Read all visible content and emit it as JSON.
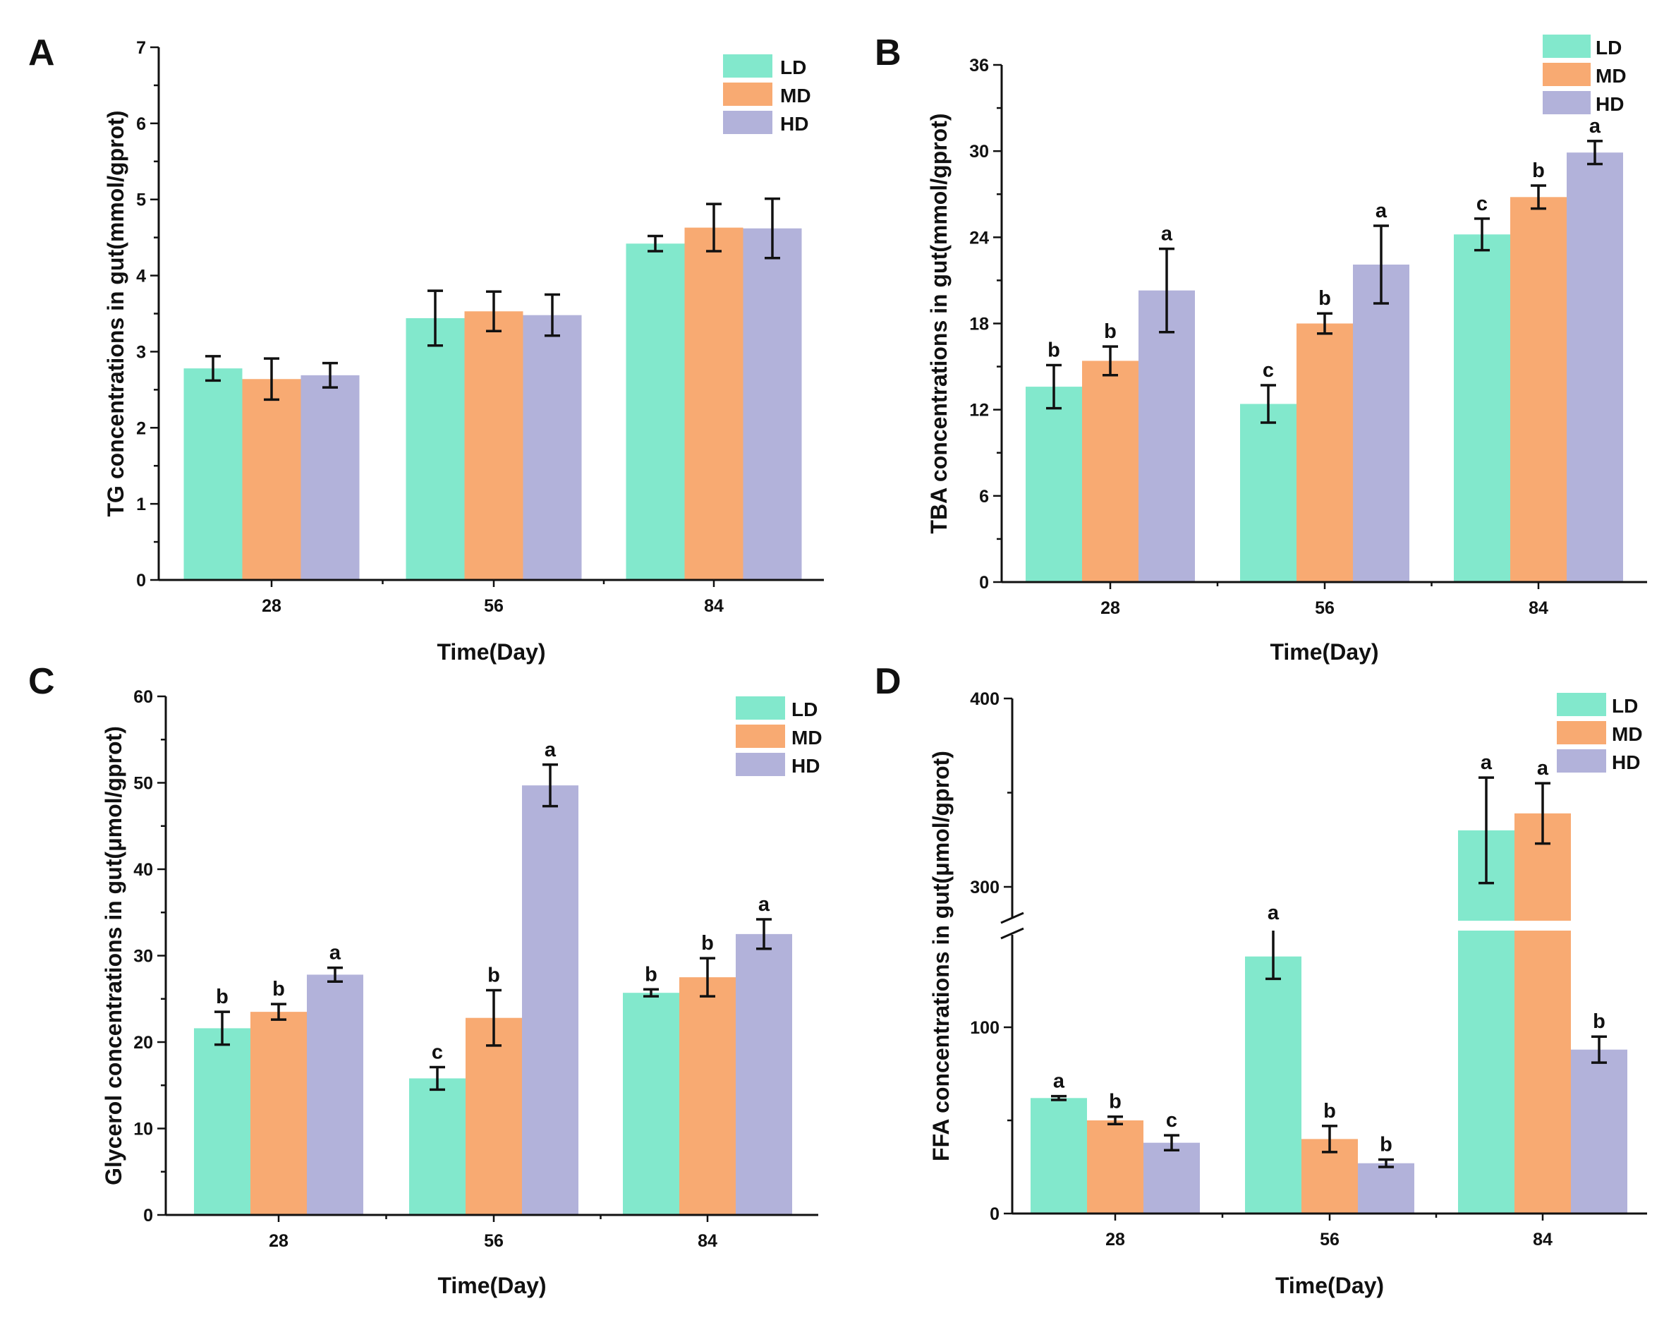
{
  "figure": {
    "colors": {
      "LD": "#82e8cc",
      "MD": "#f8aa72",
      "HD": "#b2b2da"
    }
  },
  "chart_data": [
    {
      "panel": "A",
      "type": "bar",
      "categories": [
        "28",
        "56",
        "84"
      ],
      "xlabel": "Time(Day)",
      "ylabel": "TG concentrations in gut(mmol/gprot)",
      "ylim": [
        0,
        7
      ],
      "yticks": [
        0,
        1,
        2,
        3,
        4,
        5,
        6,
        7
      ],
      "legend": [
        "LD",
        "MD",
        "HD"
      ],
      "legend_position": "top-right",
      "series": [
        {
          "name": "LD",
          "values": [
            2.78,
            3.44,
            4.42
          ],
          "errors": [
            0.16,
            0.36,
            0.1
          ],
          "labels": [
            "",
            "",
            ""
          ]
        },
        {
          "name": "MD",
          "values": [
            2.64,
            3.53,
            4.63
          ],
          "errors": [
            0.27,
            0.26,
            0.31
          ],
          "labels": [
            "",
            "",
            ""
          ]
        },
        {
          "name": "HD",
          "values": [
            2.69,
            3.48,
            4.62
          ],
          "errors": [
            0.16,
            0.27,
            0.39
          ],
          "labels": [
            "",
            "",
            ""
          ]
        }
      ]
    },
    {
      "panel": "B",
      "type": "bar",
      "categories": [
        "28",
        "56",
        "84"
      ],
      "xlabel": "Time(Day)",
      "ylabel": "TBA concentrations in gut(mmol/gprot)",
      "ylim": [
        0,
        36
      ],
      "yticks": [
        0,
        6,
        12,
        18,
        24,
        30,
        36
      ],
      "legend": [
        "LD",
        "MD",
        "HD"
      ],
      "legend_position": "top-right",
      "series": [
        {
          "name": "LD",
          "values": [
            13.6,
            12.4,
            24.2
          ],
          "errors": [
            1.5,
            1.3,
            1.1
          ],
          "labels": [
            "b",
            "c",
            "c"
          ]
        },
        {
          "name": "MD",
          "values": [
            15.4,
            18.0,
            26.8
          ],
          "errors": [
            1.0,
            0.7,
            0.8
          ],
          "labels": [
            "b",
            "b",
            "b"
          ]
        },
        {
          "name": "HD",
          "values": [
            20.3,
            22.1,
            29.9
          ],
          "errors": [
            2.9,
            2.7,
            0.8
          ],
          "labels": [
            "a",
            "a",
            "a"
          ]
        }
      ]
    },
    {
      "panel": "C",
      "type": "bar",
      "categories": [
        "28",
        "56",
        "84"
      ],
      "xlabel": "Time(Day)",
      "ylabel": "Glycerol concentrations in gut(μmol/gprot)",
      "ylim": [
        0,
        60
      ],
      "yticks": [
        0,
        10,
        20,
        30,
        40,
        50,
        60
      ],
      "legend": [
        "LD",
        "MD",
        "HD"
      ],
      "legend_position": "top-right",
      "series": [
        {
          "name": "LD",
          "values": [
            21.6,
            15.8,
            25.7
          ],
          "errors": [
            1.9,
            1.3,
            0.4
          ],
          "labels": [
            "b",
            "c",
            "b"
          ]
        },
        {
          "name": "MD",
          "values": [
            23.5,
            22.8,
            27.5
          ],
          "errors": [
            0.9,
            3.2,
            2.2
          ],
          "labels": [
            "b",
            "b",
            "b"
          ]
        },
        {
          "name": "HD",
          "values": [
            27.8,
            49.7,
            32.5
          ],
          "errors": [
            0.8,
            2.4,
            1.7
          ],
          "labels": [
            "a",
            "a",
            "a"
          ]
        }
      ]
    },
    {
      "panel": "D",
      "type": "bar",
      "categories": [
        "28",
        "56",
        "84"
      ],
      "xlabel": "Time(Day)",
      "ylabel": "FFA concentrations in gut(μmol/gprot)",
      "ylim": [
        0,
        400
      ],
      "yticks": [
        0,
        100,
        300,
        400
      ],
      "axis_break": {
        "from": 145,
        "to": 282
      },
      "legend": [
        "LD",
        "MD",
        "HD"
      ],
      "legend_position": "top-right",
      "series": [
        {
          "name": "LD",
          "values": [
            62,
            138,
            330
          ],
          "errors": [
            1,
            12,
            28
          ],
          "labels": [
            "a",
            "a",
            "a"
          ]
        },
        {
          "name": "MD",
          "values": [
            50,
            40,
            339
          ],
          "errors": [
            2,
            7,
            16
          ],
          "labels": [
            "b",
            "b",
            "a"
          ]
        },
        {
          "name": "HD",
          "values": [
            38,
            27,
            88
          ],
          "errors": [
            4,
            2,
            7
          ],
          "labels": [
            "c",
            "b",
            "b"
          ]
        }
      ]
    }
  ]
}
